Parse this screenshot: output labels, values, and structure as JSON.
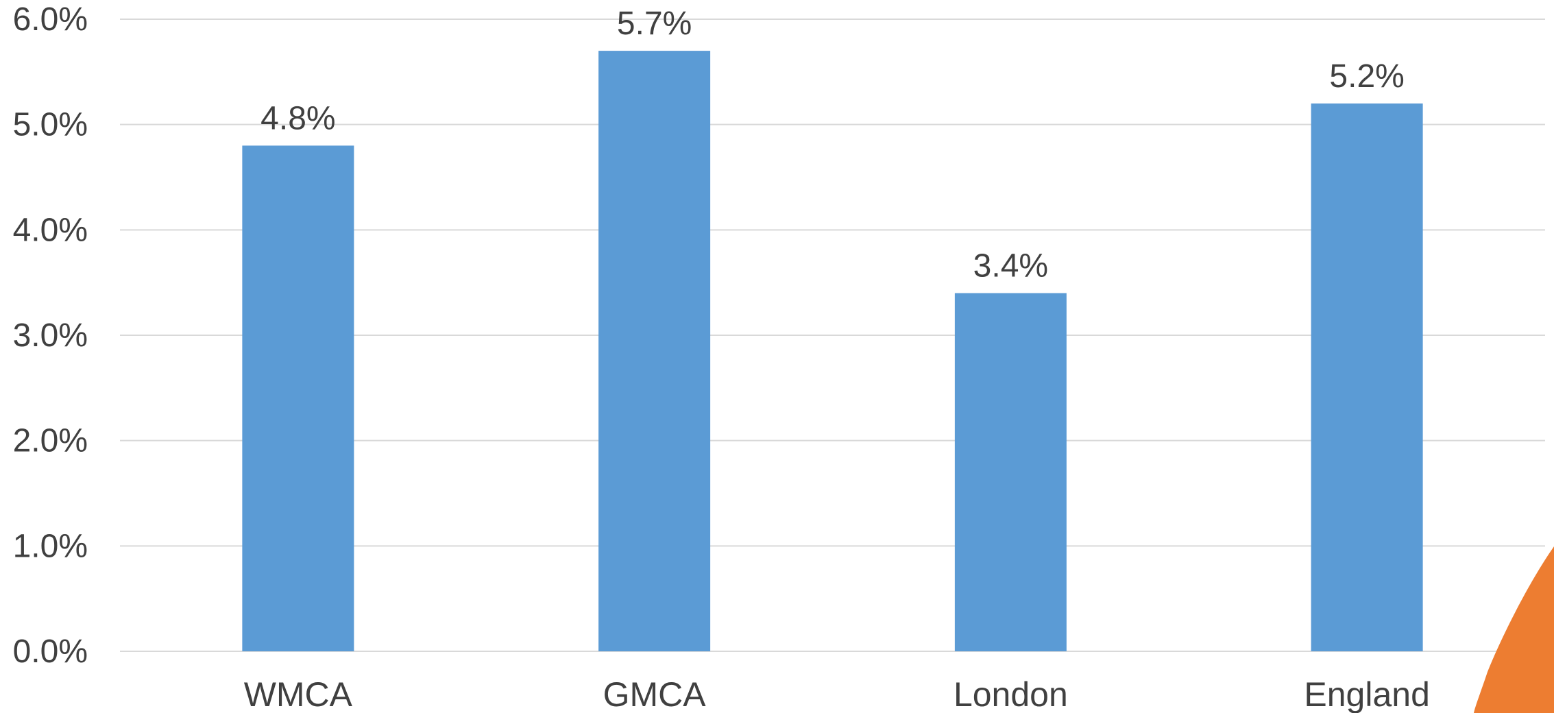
{
  "chart_data": {
    "type": "bar",
    "categories": [
      "WMCA",
      "GMCA",
      "London",
      "England"
    ],
    "values": [
      4.8,
      5.7,
      3.4,
      5.2
    ],
    "data_labels": [
      "4.8%",
      "5.7%",
      "3.4%",
      "5.2%"
    ],
    "title": "",
    "xlabel": "",
    "ylabel": "",
    "ylim": [
      0,
      6
    ],
    "yticks": [
      0,
      1,
      2,
      3,
      4,
      5,
      6
    ],
    "ytick_labels": [
      "0.0%",
      "1.0%",
      "2.0%",
      "3.0%",
      "4.0%",
      "5.0%",
      "6.0%"
    ],
    "grid": true,
    "legend": "none",
    "colors": {
      "bar": "#5B9BD5",
      "grid": "#D9D9D9",
      "text": "#404040",
      "accent_shape": "#ED7D31"
    }
  }
}
